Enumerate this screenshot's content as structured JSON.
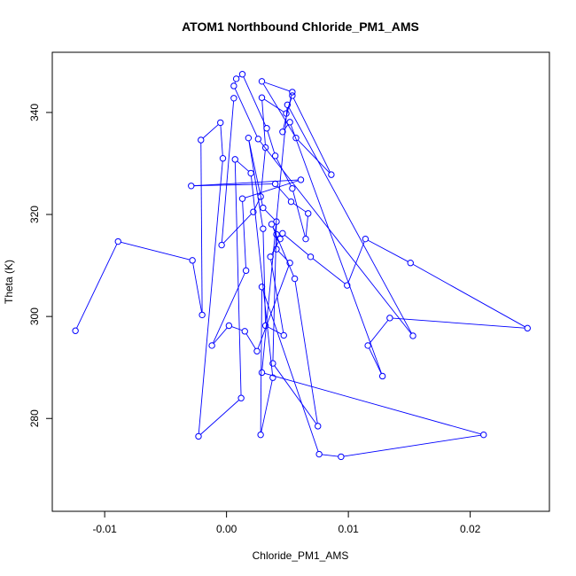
{
  "chart_data": {
    "type": "scatter",
    "title": "ATOM1 Northbound Chloride_PM1_AMS",
    "xlabel": "Chloride_PM1_AMS",
    "ylabel": "Theta (K)",
    "xlim": [
      -0.0143,
      0.0265
    ],
    "ylim": [
      261.8,
      351.8
    ],
    "x_ticks": [
      -0.01,
      0.0,
      0.01,
      0.02
    ],
    "x_tick_labels": [
      "-0.01",
      "0.00",
      "0.01",
      "0.02"
    ],
    "y_ticks": [
      280,
      300,
      320,
      340
    ],
    "y_tick_labels": [
      "280",
      "300",
      "320",
      "340"
    ],
    "grid": false,
    "legend": "none",
    "series_color": "#0000ff",
    "marker": "open-circle",
    "connected": true,
    "points": [
      [
        -0.0124,
        297.2
      ],
      [
        -0.0089,
        314.7
      ],
      [
        -0.0028,
        311.0
      ],
      [
        -0.002,
        300.3
      ],
      [
        -0.0021,
        334.6
      ],
      [
        -0.0005,
        338.0
      ],
      [
        -0.0003,
        331.0
      ],
      [
        -0.0023,
        276.5
      ],
      [
        0.0012,
        284.0
      ],
      [
        0.0007,
        330.8
      ],
      [
        0.002,
        328.1
      ],
      [
        0.0038,
        288.0
      ],
      [
        0.0028,
        276.8
      ],
      [
        0.0029,
        305.8
      ],
      [
        0.0076,
        273.0
      ],
      [
        0.0094,
        272.5
      ],
      [
        0.0211,
        276.8
      ],
      [
        0.0029,
        289.0
      ],
      [
        0.005,
        341.5
      ],
      [
        0.0153,
        296.2
      ],
      [
        0.0026,
        334.8
      ],
      [
        0.0006,
        345.2
      ],
      [
        0.0008,
        346.6
      ],
      [
        0.0013,
        347.5
      ],
      [
        0.0033,
        336.9
      ],
      [
        0.004,
        331.5
      ],
      [
        0.0054,
        325.1
      ],
      [
        0.0065,
        315.2
      ],
      [
        0.0067,
        320.2
      ],
      [
        0.0053,
        322.5
      ],
      [
        0.004,
        326.0
      ],
      [
        -0.0029,
        325.6
      ],
      [
        0.0061,
        326.8
      ],
      [
        0.0013,
        323.1
      ],
      [
        0.0016,
        309.0
      ],
      [
        -0.0012,
        294.3
      ],
      [
        0.0002,
        298.2
      ],
      [
        0.0015,
        297.1
      ],
      [
        0.0025,
        293.2
      ],
      [
        0.0052,
        310.5
      ],
      [
        0.0041,
        313.2
      ],
      [
        0.0041,
        316.1
      ],
      [
        0.0037,
        318.1
      ],
      [
        0.0056,
        307.4
      ],
      [
        0.0075,
        278.5
      ],
      [
        0.0038,
        290.8
      ],
      [
        0.0041,
        318.6
      ],
      [
        0.003,
        321.3
      ],
      [
        0.0018,
        335.0
      ],
      [
        0.003,
        317.2
      ],
      [
        0.0032,
        298.2
      ],
      [
        0.0047,
        296.3
      ],
      [
        0.0036,
        311.7
      ],
      [
        0.0044,
        315.2
      ],
      [
        0.0046,
        316.3
      ],
      [
        0.0069,
        311.7
      ],
      [
        0.0099,
        306.1
      ],
      [
        0.0114,
        315.2
      ],
      [
        0.0151,
        310.5
      ],
      [
        0.0247,
        297.7
      ],
      [
        0.0134,
        299.7
      ],
      [
        0.0116,
        294.3
      ],
      [
        0.0128,
        288.3
      ],
      [
        0.0052,
        338.1
      ],
      [
        0.0046,
        336.2
      ],
      [
        0.0054,
        344.0
      ],
      [
        0.0029,
        346.1
      ],
      [
        0.0057,
        335.0
      ],
      [
        0.0086,
        327.8
      ],
      [
        0.0054,
        343.3
      ],
      [
        0.0049,
        339.8
      ],
      [
        0.0029,
        342.9
      ],
      [
        0.0032,
        333.1
      ],
      [
        0.0028,
        323.5
      ],
      [
        0.0022,
        320.5
      ],
      [
        -0.0004,
        314.0
      ],
      [
        0.0006,
        342.8
      ]
    ]
  }
}
